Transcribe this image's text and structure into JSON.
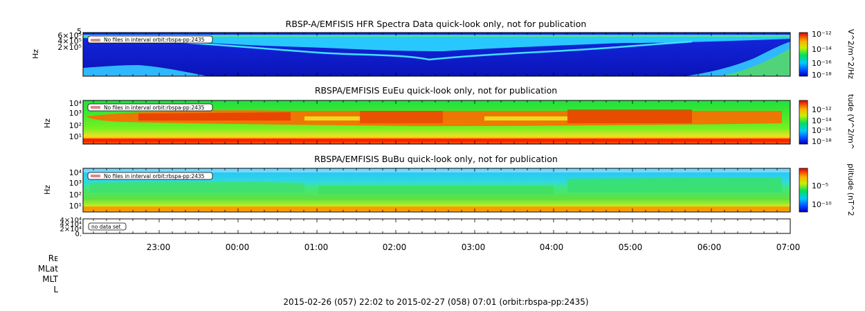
{
  "chart_data": [
    {
      "type": "heatmap",
      "title": "RBSP-A/EMFISIS  HFR Spectra Data quick-look only, not for publication",
      "ylabel": "Hz",
      "ytick_labels": [
        "5",
        "6×10⁵",
        "4×10⁵",
        "2×10⁵"
      ],
      "notice": "No files in interval orbit:rbspa-pp:2435",
      "colorbar": {
        "label": "V^2/m^2/Hz",
        "tick_labels": [
          "10⁻¹²",
          "10⁻¹⁴",
          "10⁻¹⁶",
          "10⁻¹⁸"
        ]
      }
    },
    {
      "type": "heatmap",
      "title": "RBSPA/EMFISIS  EuEu quick-look only, not for publication",
      "ylabel": "Hz",
      "ytick_labels": [
        "10⁴",
        "10³",
        "10²",
        "10¹"
      ],
      "notice": "No files in interval orbit:rbspa-pp:2435",
      "colorbar": {
        "label": "tude (V^2/m^",
        "tick_labels": [
          "10⁻¹²",
          "10⁻¹⁴",
          "10⁻¹⁶",
          "10⁻¹⁸"
        ]
      }
    },
    {
      "type": "heatmap",
      "title": "RBSPA/EMFISIS  BuBu quick-look only, not for publication",
      "ylabel": "Hz",
      "ytick_labels": [
        "10⁴",
        "10³",
        "10²",
        "10¹"
      ],
      "notice": "No files in interval orbit:rbspa-pp:2435",
      "colorbar": {
        "label": "plitude (nT^2",
        "tick_labels": [
          "10⁻⁵",
          "10⁻¹⁰"
        ]
      }
    },
    {
      "type": "line",
      "title": "",
      "ytick_labels": [
        "4×10⁴",
        "4×10⁴",
        "2×10⁴",
        "0."
      ],
      "notice": "no data set"
    }
  ],
  "xaxis": {
    "tick_labels": [
      "23:00",
      "00:00",
      "01:00",
      "02:00",
      "03:00",
      "04:00",
      "05:00",
      "06:00",
      "07:00"
    ]
  },
  "ephemeris_labels": [
    "Rᴇ",
    "MLat",
    "MLT",
    "L"
  ],
  "footer": "2015-02-26 (057) 22:02 to 2015-02-27 (058) 07:01 (orbit:rbspa-pp:2435)"
}
